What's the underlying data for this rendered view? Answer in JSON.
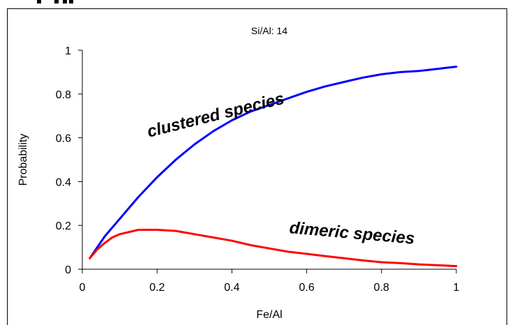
{
  "chart_data": {
    "type": "line",
    "title": "Si/Al: 14",
    "xlabel": "Fe/Al",
    "ylabel": "Probability",
    "xlim": [
      0,
      1
    ],
    "ylim": [
      0,
      1
    ],
    "x_ticks": [
      "0",
      "0.2",
      "0.4",
      "0.6",
      "0.8",
      "1"
    ],
    "y_ticks": [
      "0",
      "0.2",
      "0.4",
      "0.6",
      "0.8",
      "1"
    ],
    "grid": false,
    "series": [
      {
        "name": "clustered species",
        "color": "#0000ff",
        "x": [
          0.02,
          0.04,
          0.06,
          0.08,
          0.1,
          0.15,
          0.2,
          0.25,
          0.3,
          0.35,
          0.4,
          0.45,
          0.5,
          0.55,
          0.6,
          0.65,
          0.7,
          0.75,
          0.8,
          0.85,
          0.9,
          0.95,
          1.0
        ],
        "y": [
          0.05,
          0.1,
          0.15,
          0.19,
          0.23,
          0.33,
          0.42,
          0.5,
          0.57,
          0.63,
          0.68,
          0.72,
          0.75,
          0.78,
          0.81,
          0.835,
          0.855,
          0.875,
          0.89,
          0.9,
          0.905,
          0.915,
          0.925
        ]
      },
      {
        "name": "dimeric species",
        "color": "#ff0000",
        "x": [
          0.02,
          0.04,
          0.06,
          0.08,
          0.1,
          0.15,
          0.2,
          0.25,
          0.3,
          0.35,
          0.4,
          0.45,
          0.5,
          0.55,
          0.6,
          0.65,
          0.7,
          0.75,
          0.8,
          0.85,
          0.9,
          0.95,
          1.0
        ],
        "y": [
          0.05,
          0.09,
          0.12,
          0.145,
          0.16,
          0.18,
          0.18,
          0.175,
          0.16,
          0.145,
          0.13,
          0.11,
          0.095,
          0.08,
          0.07,
          0.06,
          0.05,
          0.04,
          0.032,
          0.028,
          0.022,
          0.018,
          0.014
        ]
      }
    ],
    "annotations": [
      {
        "text": "clustered species",
        "x": 0.36,
        "y": 0.68,
        "rotate": -14
      },
      {
        "text": "dimeric species",
        "x": 0.72,
        "y": 0.14,
        "rotate": 5
      }
    ]
  }
}
